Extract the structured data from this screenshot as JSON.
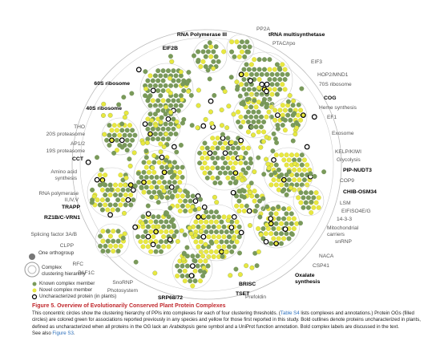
{
  "figure": {
    "complexes": [
      {
        "name": "RNA Polymerase III",
        "bold": true
      },
      {
        "name": "PP2A",
        "bold": false
      },
      {
        "name": "tRNA multisynthetase",
        "bold": true
      },
      {
        "name": "PTAC/rpo",
        "bold": false
      },
      {
        "name": "EIF2B",
        "bold": true
      },
      {
        "name": "EIF3",
        "bold": false
      },
      {
        "name": "HOP2/MND1",
        "bold": false
      },
      {
        "name": "60S ribosome",
        "bold": true
      },
      {
        "name": "70S ribosome",
        "bold": false
      },
      {
        "name": "COG",
        "bold": true
      },
      {
        "name": "Heme synthesis",
        "bold": false
      },
      {
        "name": "40S ribosome",
        "bold": true
      },
      {
        "name": "EF1",
        "bold": false
      },
      {
        "name": "THO",
        "bold": false
      },
      {
        "name": "20S proteasome",
        "bold": false
      },
      {
        "name": "Exosome",
        "bold": false
      },
      {
        "name": "AP1/2",
        "bold": false
      },
      {
        "name": "19S proteasome",
        "bold": false
      },
      {
        "name": "CCT",
        "bold": true
      },
      {
        "name": "KELP/KIWI",
        "bold": false
      },
      {
        "name": "Glycolysis",
        "bold": false
      },
      {
        "name": "PIP-NUDT3",
        "bold": true
      },
      {
        "name": "Amino acid\nsynthesis",
        "bold": false
      },
      {
        "name": "COP9",
        "bold": false
      },
      {
        "name": "RNA polymerase\nII,IV,V",
        "bold": false
      },
      {
        "name": "CHIB-OSM34",
        "bold": true
      },
      {
        "name": "LSM",
        "bold": false
      },
      {
        "name": "TRAPP",
        "bold": true
      },
      {
        "name": "EIFISO4E/G",
        "bold": false
      },
      {
        "name": "RZ1B/C-VRN1",
        "bold": true
      },
      {
        "name": "14-3-3",
        "bold": false
      },
      {
        "name": "Mitochondrial\ncarriers",
        "bold": false
      },
      {
        "name": "Splicing factor 3A/B",
        "bold": false
      },
      {
        "name": "snRNP",
        "bold": false
      },
      {
        "name": "CLPP",
        "bold": false
      },
      {
        "name": "NACA",
        "bold": false
      },
      {
        "name": "RFC",
        "bold": false
      },
      {
        "name": "CSP41",
        "bold": false
      },
      {
        "name": "PAF1C",
        "bold": false
      },
      {
        "name": "Oxalate\nsynthesis",
        "bold": true
      },
      {
        "name": "SnoRNP",
        "bold": false
      },
      {
        "name": "Photosystem",
        "bold": false
      },
      {
        "name": "SRP68/72",
        "bold": true
      },
      {
        "name": "BRISC",
        "bold": true
      },
      {
        "name": "TSET",
        "bold": true
      },
      {
        "name": "Prefoldin",
        "bold": false
      }
    ],
    "legend": {
      "orthogroup": "One orthogroup",
      "hierarchy": "Complex\nclustering hierarchy",
      "known": "Known complex member",
      "novel": "Novel complex member",
      "uncharacterized": "Uncharacterized protein (in plants)"
    },
    "caption": {
      "title": "Figure 5. Overview of Evolutionarily Conserved Plant Protein Complexes",
      "body": [
        "This concentric circles show the clustering hierarchy of PPIs into complexes for each of four clustering thresholds. (",
        "Table S4",
        " lists complexes and annotations.) Protein OGs (filled circles) are colored green for associations reported previously in any species and yellow for those first reported in this study. Bold outlines denote proteins uncharacterized in plants, defined as uncharacterized when all proteins in the OG lack an ",
        "Arabidopsis",
        " gene symbol and a UniProt function annotation. Bold complex labels are discussed in the text."
      ],
      "see_also": "See also ",
      "see_also_link": "Figure S3",
      "see_also_end": "."
    }
  }
}
